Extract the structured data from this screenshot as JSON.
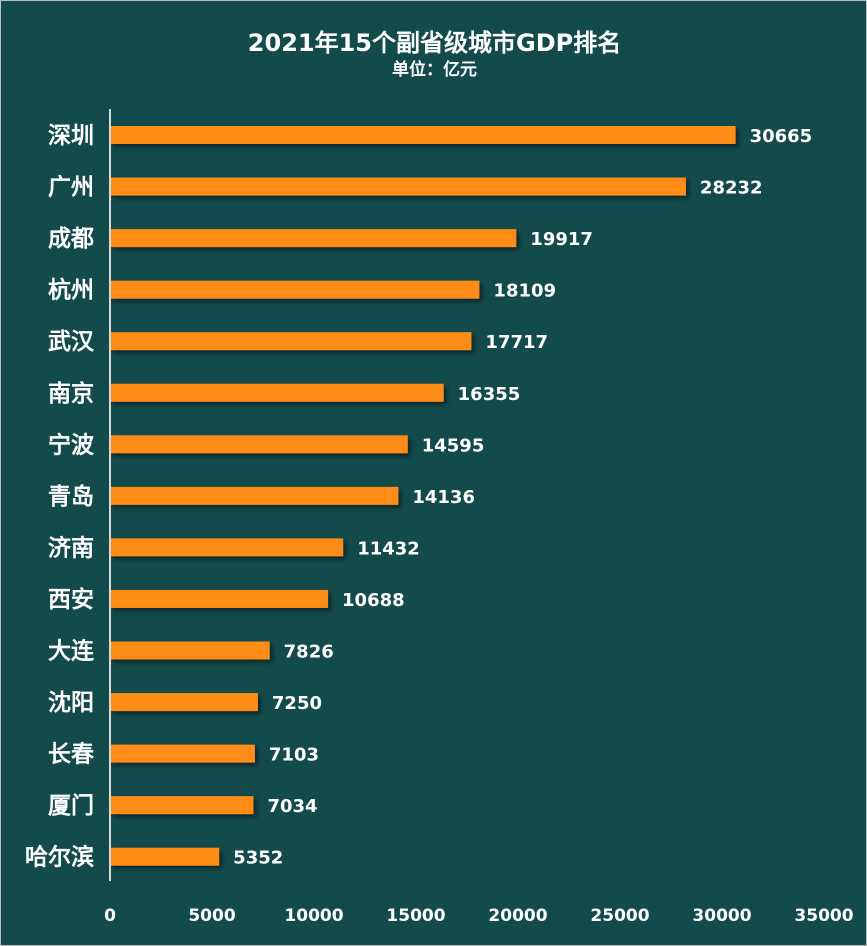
{
  "chart_data": {
    "type": "bar",
    "orientation": "horizontal",
    "title": "2021年15个副省级城市GDP排名",
    "subtitle": "单位：亿元",
    "categories": [
      "深圳",
      "广州",
      "成都",
      "杭州",
      "武汉",
      "南京",
      "宁波",
      "青岛",
      "济南",
      "西安",
      "大连",
      "沈阳",
      "长春",
      "厦门",
      "哈尔滨"
    ],
    "values": [
      30665,
      28232,
      19917,
      18109,
      17717,
      16355,
      14595,
      14136,
      11432,
      10688,
      7826,
      7250,
      7103,
      7034,
      5352
    ],
    "xlim": [
      0,
      35000
    ],
    "xticks": [
      "0",
      "5000",
      "10000",
      "15000",
      "20000",
      "25000",
      "30000",
      "35000"
    ],
    "grid": false,
    "legend": "none",
    "colors": {
      "bar": "#ff8c16",
      "background": "#134a4c",
      "text": "#ffffff",
      "axis": "#d9d9d9"
    }
  }
}
